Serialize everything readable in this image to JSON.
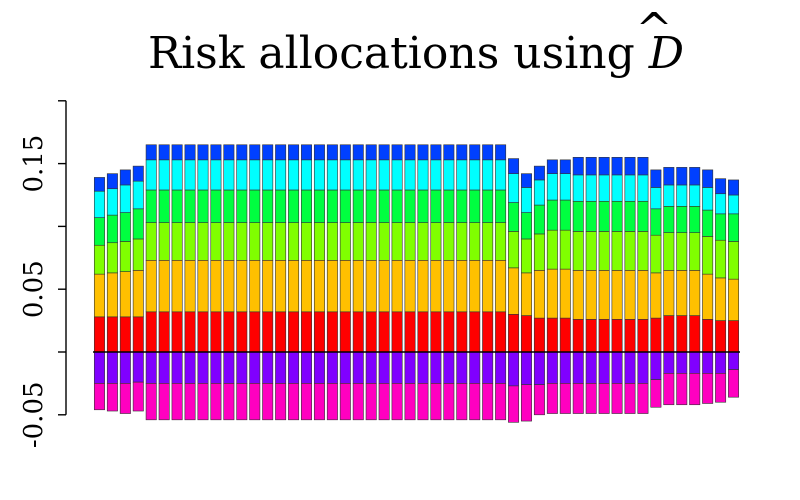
{
  "chart_data": {
    "type": "bar",
    "stacked": true,
    "title": "Risk allocations using ",
    "title_symbol": "D",
    "title_symbol_accent": "^",
    "xlabel": "",
    "ylabel": "",
    "ylim": [
      -0.05,
      0.2
    ],
    "y_ticks": [
      -0.05,
      0,
      0.05,
      0.1,
      0.15,
      0.2
    ],
    "y_tick_labels": [
      "-0.05",
      "",
      "0.05",
      "",
      "0.15",
      ""
    ],
    "grid": false,
    "legend": "none",
    "n_bars": 50,
    "negative_series": [
      {
        "color": "#8000FF",
        "values": [
          -0.025,
          -0.025,
          -0.025,
          -0.024,
          -0.025,
          -0.025,
          -0.025,
          -0.025,
          -0.025,
          -0.025,
          -0.025,
          -0.025,
          -0.025,
          -0.025,
          -0.025,
          -0.025,
          -0.025,
          -0.025,
          -0.025,
          -0.025,
          -0.025,
          -0.025,
          -0.025,
          -0.025,
          -0.025,
          -0.025,
          -0.025,
          -0.025,
          -0.025,
          -0.025,
          -0.025,
          -0.025,
          -0.027,
          -0.026,
          -0.026,
          -0.025,
          -0.025,
          -0.025,
          -0.025,
          -0.025,
          -0.025,
          -0.025,
          -0.025,
          -0.022,
          -0.017,
          -0.017,
          -0.017,
          -0.017,
          -0.017,
          -0.014
        ]
      },
      {
        "color": "#FF00C0",
        "values": [
          -0.021,
          -0.022,
          -0.024,
          -0.023,
          -0.029,
          -0.029,
          -0.029,
          -0.029,
          -0.029,
          -0.029,
          -0.029,
          -0.029,
          -0.029,
          -0.029,
          -0.029,
          -0.029,
          -0.029,
          -0.029,
          -0.029,
          -0.029,
          -0.029,
          -0.029,
          -0.029,
          -0.029,
          -0.029,
          -0.029,
          -0.029,
          -0.029,
          -0.029,
          -0.029,
          -0.029,
          -0.029,
          -0.029,
          -0.029,
          -0.024,
          -0.024,
          -0.024,
          -0.024,
          -0.024,
          -0.024,
          -0.024,
          -0.024,
          -0.024,
          -0.022,
          -0.025,
          -0.025,
          -0.025,
          -0.024,
          -0.023,
          -0.022
        ]
      }
    ],
    "positive_series": [
      {
        "color": "#FF0000",
        "values": [
          0.028,
          0.028,
          0.028,
          0.028,
          0.032,
          0.032,
          0.032,
          0.032,
          0.032,
          0.032,
          0.032,
          0.032,
          0.032,
          0.032,
          0.032,
          0.032,
          0.032,
          0.032,
          0.032,
          0.032,
          0.032,
          0.032,
          0.032,
          0.032,
          0.032,
          0.032,
          0.032,
          0.032,
          0.032,
          0.032,
          0.032,
          0.032,
          0.03,
          0.029,
          0.027,
          0.027,
          0.027,
          0.026,
          0.026,
          0.026,
          0.026,
          0.026,
          0.026,
          0.027,
          0.029,
          0.029,
          0.029,
          0.026,
          0.025,
          0.025
        ]
      },
      {
        "color": "#FFC000",
        "values": [
          0.034,
          0.035,
          0.036,
          0.037,
          0.041,
          0.041,
          0.041,
          0.041,
          0.041,
          0.041,
          0.041,
          0.041,
          0.041,
          0.041,
          0.041,
          0.041,
          0.041,
          0.041,
          0.041,
          0.041,
          0.041,
          0.041,
          0.041,
          0.041,
          0.041,
          0.041,
          0.041,
          0.041,
          0.041,
          0.041,
          0.041,
          0.041,
          0.037,
          0.034,
          0.038,
          0.039,
          0.039,
          0.039,
          0.039,
          0.039,
          0.039,
          0.039,
          0.039,
          0.036,
          0.036,
          0.036,
          0.036,
          0.036,
          0.034,
          0.033
        ]
      },
      {
        "color": "#80FF00",
        "values": [
          0.023,
          0.024,
          0.024,
          0.025,
          0.03,
          0.03,
          0.03,
          0.03,
          0.03,
          0.03,
          0.03,
          0.03,
          0.03,
          0.03,
          0.03,
          0.03,
          0.03,
          0.03,
          0.03,
          0.03,
          0.03,
          0.03,
          0.03,
          0.03,
          0.03,
          0.03,
          0.03,
          0.03,
          0.03,
          0.03,
          0.03,
          0.03,
          0.029,
          0.027,
          0.029,
          0.031,
          0.031,
          0.031,
          0.031,
          0.031,
          0.031,
          0.031,
          0.031,
          0.03,
          0.03,
          0.03,
          0.03,
          0.03,
          0.03,
          0.03
        ]
      },
      {
        "color": "#00FF40",
        "values": [
          0.022,
          0.022,
          0.023,
          0.024,
          0.026,
          0.026,
          0.026,
          0.026,
          0.026,
          0.026,
          0.026,
          0.026,
          0.026,
          0.026,
          0.026,
          0.026,
          0.026,
          0.026,
          0.026,
          0.026,
          0.026,
          0.026,
          0.026,
          0.026,
          0.026,
          0.026,
          0.026,
          0.026,
          0.026,
          0.026,
          0.026,
          0.026,
          0.023,
          0.021,
          0.023,
          0.024,
          0.024,
          0.024,
          0.024,
          0.024,
          0.024,
          0.024,
          0.024,
          0.021,
          0.021,
          0.021,
          0.021,
          0.021,
          0.021,
          0.022
        ]
      },
      {
        "color": "#00FFFF",
        "values": [
          0.021,
          0.021,
          0.022,
          0.022,
          0.024,
          0.024,
          0.024,
          0.024,
          0.024,
          0.024,
          0.024,
          0.024,
          0.024,
          0.024,
          0.024,
          0.024,
          0.024,
          0.024,
          0.024,
          0.024,
          0.024,
          0.024,
          0.024,
          0.024,
          0.024,
          0.024,
          0.024,
          0.024,
          0.024,
          0.024,
          0.024,
          0.024,
          0.023,
          0.02,
          0.02,
          0.021,
          0.021,
          0.021,
          0.021,
          0.021,
          0.021,
          0.021,
          0.021,
          0.017,
          0.017,
          0.017,
          0.017,
          0.018,
          0.016,
          0.015
        ]
      },
      {
        "color": "#0040FF",
        "values": [
          0.011,
          0.012,
          0.012,
          0.012,
          0.012,
          0.012,
          0.012,
          0.012,
          0.012,
          0.012,
          0.012,
          0.012,
          0.012,
          0.012,
          0.012,
          0.012,
          0.012,
          0.012,
          0.012,
          0.012,
          0.012,
          0.012,
          0.012,
          0.012,
          0.012,
          0.012,
          0.012,
          0.012,
          0.012,
          0.012,
          0.012,
          0.012,
          0.012,
          0.011,
          0.011,
          0.011,
          0.011,
          0.014,
          0.014,
          0.014,
          0.014,
          0.014,
          0.014,
          0.014,
          0.014,
          0.014,
          0.014,
          0.014,
          0.012,
          0.012
        ]
      }
    ]
  }
}
